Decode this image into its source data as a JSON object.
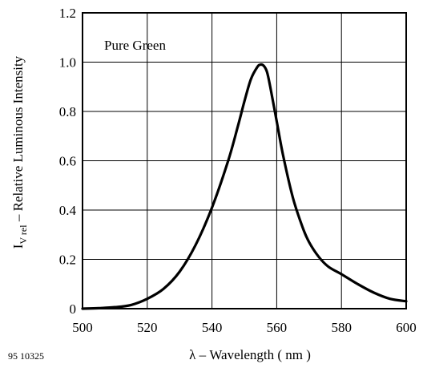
{
  "chart_data": {
    "type": "line",
    "title": "",
    "annotation": "Pure Green",
    "figure_number": "95 10325",
    "xlabel": "λ – Wavelength ( nm )",
    "ylabel": {
      "symbol": "I",
      "subscript": "V rel",
      "text": " – Relative Luminous Intensity"
    },
    "xlim": [
      500,
      600
    ],
    "ylim": [
      0,
      1.2
    ],
    "x_ticks": [
      500,
      520,
      540,
      560,
      580,
      600
    ],
    "y_ticks": [
      0,
      0.2,
      0.4,
      0.6,
      0.8,
      1.0,
      1.2
    ],
    "x_tick_labels": [
      "500",
      "520",
      "540",
      "560",
      "580",
      "600"
    ],
    "y_tick_labels": [
      "0",
      "0.2",
      "0.4",
      "0.6",
      "0.8",
      "1.0",
      "1.2"
    ],
    "grid": true,
    "line_color": "#000000",
    "series": [
      {
        "points": [
          [
            500,
            0.0
          ],
          [
            505,
            0.002
          ],
          [
            510,
            0.006
          ],
          [
            515,
            0.015
          ],
          [
            520,
            0.04
          ],
          [
            525,
            0.08
          ],
          [
            530,
            0.15
          ],
          [
            535,
            0.26
          ],
          [
            540,
            0.41
          ],
          [
            545,
            0.6
          ],
          [
            548,
            0.74
          ],
          [
            550,
            0.84
          ],
          [
            552,
            0.93
          ],
          [
            554,
            0.98
          ],
          [
            555,
            0.99
          ],
          [
            556,
            0.985
          ],
          [
            557,
            0.96
          ],
          [
            558,
            0.9
          ],
          [
            560,
            0.76
          ],
          [
            562,
            0.62
          ],
          [
            565,
            0.45
          ],
          [
            568,
            0.33
          ],
          [
            570,
            0.27
          ],
          [
            573,
            0.21
          ],
          [
            576,
            0.17
          ],
          [
            580,
            0.14
          ],
          [
            585,
            0.1
          ],
          [
            590,
            0.065
          ],
          [
            595,
            0.04
          ],
          [
            600,
            0.03
          ]
        ]
      }
    ]
  }
}
